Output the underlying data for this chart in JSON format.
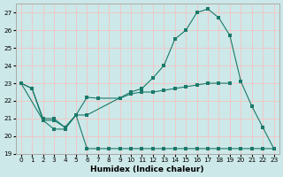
{
  "background_color": "#cde8e8",
  "grid_color": "#f0c8c8",
  "line_color": "#1a7a6a",
  "xlabel": "Humidex (Indice chaleur)",
  "ylim": [
    19,
    27.5
  ],
  "xlim": [
    -0.5,
    23.5
  ],
  "yticks": [
    19,
    20,
    21,
    22,
    23,
    24,
    25,
    26,
    27
  ],
  "xticks": [
    0,
    1,
    2,
    3,
    4,
    5,
    6,
    7,
    8,
    9,
    10,
    11,
    12,
    13,
    14,
    15,
    16,
    17,
    18,
    19,
    20,
    21,
    22,
    23
  ],
  "series1": {
    "x": [
      0,
      1,
      2,
      3,
      4,
      5,
      6,
      7,
      8,
      9,
      10,
      11,
      12,
      13,
      14,
      15,
      16,
      17,
      18,
      19,
      20,
      21,
      22,
      23
    ],
    "y": [
      23.0,
      22.7,
      20.9,
      20.4,
      20.4,
      21.2,
      19.3,
      19.3,
      19.3,
      19.3,
      19.3,
      19.3,
      19.3,
      19.3,
      19.3,
      19.3,
      19.3,
      19.3,
      19.3,
      19.3,
      19.3,
      19.3,
      19.3,
      19.3
    ]
  },
  "series2": {
    "x": [
      0,
      2,
      3,
      4,
      5,
      6,
      10,
      11,
      12,
      13,
      14,
      15,
      16,
      17,
      18,
      19,
      20,
      21,
      22,
      23
    ],
    "y": [
      23.0,
      20.9,
      20.9,
      20.5,
      21.2,
      21.2,
      22.5,
      22.7,
      23.3,
      24.0,
      25.5,
      26.0,
      27.0,
      27.2,
      26.7,
      25.7,
      23.1,
      21.7,
      20.5,
      19.3
    ]
  },
  "series3": {
    "x": [
      0,
      1,
      2,
      3,
      4,
      5,
      6,
      7,
      9,
      10,
      11,
      12,
      13,
      14,
      15,
      16,
      17,
      18,
      19
    ],
    "y": [
      23.0,
      22.7,
      21.0,
      21.0,
      20.5,
      21.2,
      22.2,
      22.15,
      22.15,
      22.4,
      22.5,
      22.5,
      22.6,
      22.7,
      22.8,
      22.9,
      23.0,
      23.0,
      23.0
    ]
  }
}
